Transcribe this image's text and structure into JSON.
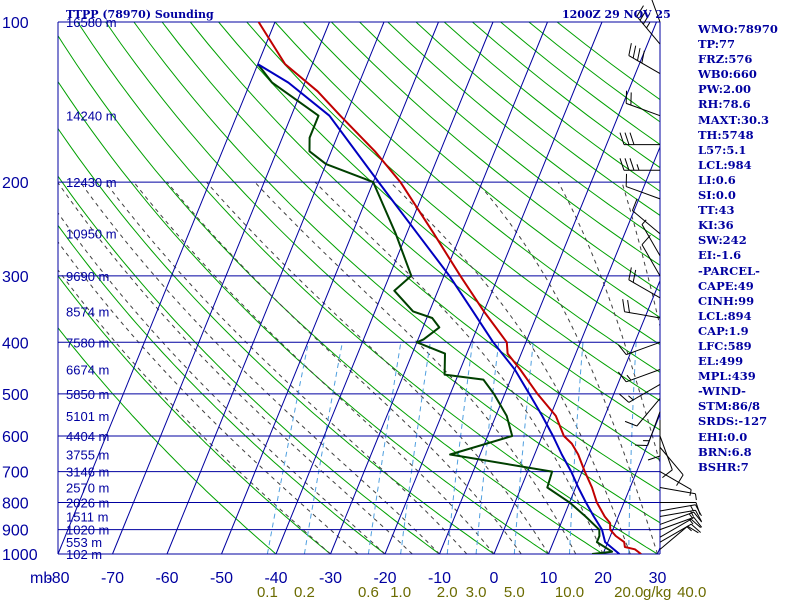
{
  "header": {
    "title": "TTPP (78970) Sounding",
    "time": "1200Z 29 NOV 25"
  },
  "indices": [
    "WMO:78970",
    "TP:77",
    "FRZ:576",
    "WB0:660",
    "PW:2.00",
    "RH:78.6",
    "MAXT:30.3",
    "TH:5748",
    "L57:5.1",
    "LCL:984",
    "LI:0.6",
    "SI:0.0",
    "TT:43",
    "KI:36",
    "SW:242",
    "EI:-1.6",
    "-PARCEL-",
    "CAPE:49",
    "CINH:99",
    "LCL:894",
    "CAP:1.9",
    "LFC:589",
    "EL:499",
    "MPL:439",
    "-WIND-",
    "STM:86/8",
    "SRDS:-127",
    "EHI:0.0",
    "BRN:6.8",
    "BSHR:7"
  ],
  "colors": {
    "grid": "#0000a0",
    "dry_adiabat": "#00a000",
    "moist_adiabat": "#404040",
    "mixing_ratio": "#4f9fdf",
    "temperature": "#c00000",
    "dewpoint": "#004000",
    "parcel": "#0000c0",
    "mixing_label": "#6b6b00",
    "wind_barb": "#000000"
  },
  "chart_data": {
    "type": "line",
    "title": "TTPP (78970) Sounding",
    "subtitle": "1200Z 29 NOV 25",
    "xlabel": "",
    "ylabel": "mb",
    "y_scale": "log-pressure",
    "ylim": [
      1000,
      100
    ],
    "xlim": [
      -80,
      30
    ],
    "pressure_ticks": [
      100,
      200,
      300,
      400,
      500,
      600,
      700,
      800,
      900,
      1000
    ],
    "temp_ticks": [
      -80,
      -70,
      -60,
      -50,
      -40,
      -30,
      -20,
      -10,
      0,
      10,
      20,
      30
    ],
    "temp_tick_labels": [
      "-80",
      "-70",
      "-60",
      "-50",
      "-40",
      "-30",
      "-20",
      "-10",
      "0",
      "10",
      "20",
      "30"
    ],
    "height_labels": [
      {
        "p": 100,
        "label": "16580 m"
      },
      {
        "p": 150,
        "label": "14240 m"
      },
      {
        "p": 200,
        "label": "12430 m"
      },
      {
        "p": 250,
        "label": "10950 m"
      },
      {
        "p": 300,
        "label": "9690 m"
      },
      {
        "p": 350,
        "label": "8574 m"
      },
      {
        "p": 400,
        "label": "7580 m"
      },
      {
        "p": 450,
        "label": "6674 m"
      },
      {
        "p": 500,
        "label": "5850 m"
      },
      {
        "p": 550,
        "label": "5101 m"
      },
      {
        "p": 600,
        "label": "4404 m"
      },
      {
        "p": 650,
        "label": "3755 m"
      },
      {
        "p": 700,
        "label": "3146 m"
      },
      {
        "p": 750,
        "label": "2570 m"
      },
      {
        "p": 800,
        "label": "2026 m"
      },
      {
        "p": 850,
        "label": "1511 m"
      },
      {
        "p": 900,
        "label": "1020 m"
      },
      {
        "p": 950,
        "label": "553 m"
      },
      {
        "p": 1000,
        "label": "102 m"
      }
    ],
    "mixing_ratio_labels": [
      "0.1",
      "0.2",
      "0.6",
      "1.0",
      "2.0",
      "3.0",
      "5.0",
      "10.0",
      "20.0",
      "40.0"
    ],
    "mixing_ratio_unit": "g/kg",
    "mixing_ratio_values": [
      0.1,
      0.2,
      0.6,
      1.0,
      2.0,
      3.0,
      5.0,
      10.0,
      20.0,
      40.0
    ],
    "series": [
      {
        "name": "",
        "key": "temperature",
        "points": [
          [
            1000,
            27
          ],
          [
            980,
            25.5
          ],
          [
            970,
            23.5
          ],
          [
            950,
            23
          ],
          [
            925,
            21
          ],
          [
            900,
            19.5
          ],
          [
            875,
            19
          ],
          [
            850,
            17.5
          ],
          [
            800,
            15
          ],
          [
            750,
            13
          ],
          [
            700,
            10.5
          ],
          [
            650,
            8
          ],
          [
            620,
            6
          ],
          [
            600,
            4
          ],
          [
            550,
            1
          ],
          [
            500,
            -4
          ],
          [
            450,
            -9
          ],
          [
            420,
            -12.5
          ],
          [
            400,
            -13.5
          ],
          [
            380,
            -16
          ],
          [
            350,
            -20
          ],
          [
            300,
            -27
          ],
          [
            250,
            -35
          ],
          [
            200,
            -45
          ],
          [
            175,
            -52
          ],
          [
            150,
            -61
          ],
          [
            135,
            -67
          ],
          [
            120,
            -75
          ],
          [
            100,
            -83
          ]
        ]
      },
      {
        "name": "",
        "key": "dewpoint",
        "points": [
          [
            1000,
            18
          ],
          [
            990,
            21.5
          ],
          [
            950,
            18
          ],
          [
            925,
            18
          ],
          [
            900,
            17.5
          ],
          [
            850,
            14
          ],
          [
            800,
            10
          ],
          [
            750,
            4.8
          ],
          [
            700,
            4.5
          ],
          [
            650,
            -15.5
          ],
          [
            600,
            -5.5
          ],
          [
            550,
            -8
          ],
          [
            500,
            -12
          ],
          [
            470,
            -15
          ],
          [
            460,
            -22.5
          ],
          [
            420,
            -24
          ],
          [
            400,
            -30
          ],
          [
            395,
            -29
          ],
          [
            375,
            -27
          ],
          [
            360,
            -29
          ],
          [
            350,
            -33
          ],
          [
            320,
            -38
          ],
          [
            300,
            -36
          ],
          [
            250,
            -42
          ],
          [
            200,
            -50
          ],
          [
            185,
            -60
          ],
          [
            175,
            -64
          ],
          [
            165,
            -65
          ],
          [
            150,
            -65
          ],
          [
            130,
            -76
          ],
          [
            120,
            -80
          ]
        ]
      },
      {
        "name": "",
        "key": "parcel",
        "points": [
          [
            1000,
            23
          ],
          [
            950,
            19.5
          ],
          [
            900,
            18
          ],
          [
            850,
            15.5
          ],
          [
            800,
            13
          ],
          [
            750,
            10.5
          ],
          [
            700,
            8
          ],
          [
            650,
            5
          ],
          [
            600,
            2
          ],
          [
            550,
            -1.5
          ],
          [
            500,
            -5.5
          ],
          [
            450,
            -10
          ],
          [
            400,
            -16
          ],
          [
            350,
            -22
          ],
          [
            300,
            -29
          ],
          [
            250,
            -38
          ],
          [
            200,
            -49
          ],
          [
            150,
            -63
          ],
          [
            130,
            -73
          ],
          [
            120,
            -80
          ]
        ]
      }
    ],
    "wind_barbs": [
      {
        "p": 100,
        "dir": 340,
        "spd": 25
      },
      {
        "p": 110,
        "dir": 320,
        "spd": 35
      },
      {
        "p": 125,
        "dir": 300,
        "spd": 40
      },
      {
        "p": 150,
        "dir": 290,
        "spd": 20
      },
      {
        "p": 170,
        "dir": 270,
        "spd": 30
      },
      {
        "p": 190,
        "dir": 270,
        "spd": 35
      },
      {
        "p": 215,
        "dir": 290,
        "spd": 10
      },
      {
        "p": 250,
        "dir": 310,
        "spd": 10
      },
      {
        "p": 275,
        "dir": 330,
        "spd": 5
      },
      {
        "p": 300,
        "dir": 330,
        "spd": 10
      },
      {
        "p": 330,
        "dir": 300,
        "spd": 20
      },
      {
        "p": 360,
        "dir": 280,
        "spd": 20
      },
      {
        "p": 400,
        "dir": 250,
        "spd": 10
      },
      {
        "p": 450,
        "dir": 250,
        "spd": 15
      },
      {
        "p": 480,
        "dir": 240,
        "spd": 15
      },
      {
        "p": 510,
        "dir": 220,
        "spd": 10
      },
      {
        "p": 540,
        "dir": 200,
        "spd": 15
      },
      {
        "p": 560,
        "dir": 180,
        "spd": 10
      },
      {
        "p": 600,
        "dir": 160,
        "spd": 10
      },
      {
        "p": 630,
        "dir": 140,
        "spd": 10
      },
      {
        "p": 700,
        "dir": 120,
        "spd": 5
      },
      {
        "p": 750,
        "dir": 100,
        "spd": 5
      },
      {
        "p": 800,
        "dir": 90,
        "spd": 10
      },
      {
        "p": 830,
        "dir": 80,
        "spd": 15
      },
      {
        "p": 850,
        "dir": 80,
        "spd": 15
      },
      {
        "p": 880,
        "dir": 70,
        "spd": 15
      },
      {
        "p": 900,
        "dir": 70,
        "spd": 15
      },
      {
        "p": 930,
        "dir": 60,
        "spd": 10
      },
      {
        "p": 950,
        "dir": 60,
        "spd": 15
      },
      {
        "p": 980,
        "dir": 50,
        "spd": 10
      }
    ]
  }
}
